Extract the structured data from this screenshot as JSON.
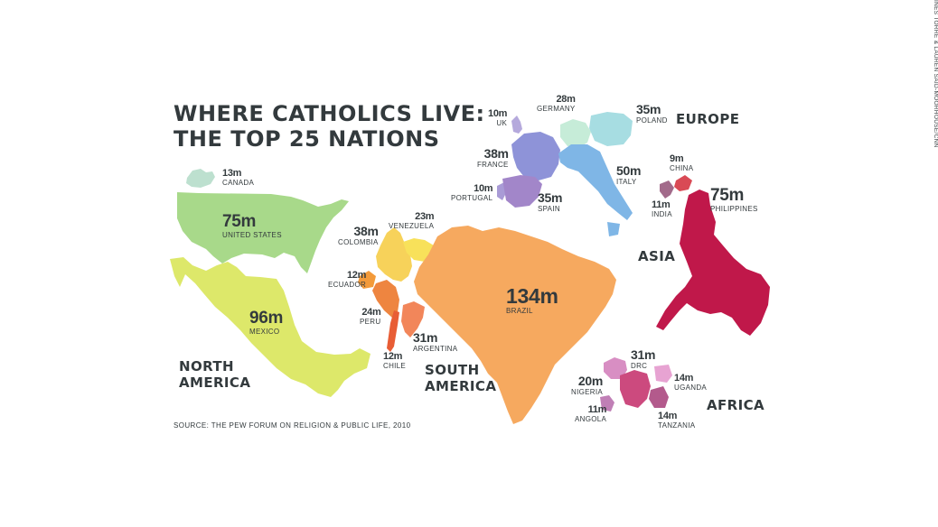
{
  "title": {
    "line1": "WHERE CATHOLICS LIVE:",
    "line2": "THE TOP 25 NATIONS"
  },
  "regions": {
    "north_america": [
      "NORTH",
      "AMERICA"
    ],
    "south_america": [
      "SOUTH",
      "AMERICA"
    ],
    "europe": "EUROPE",
    "asia": "ASIA",
    "africa": "AFRICA"
  },
  "countries": {
    "canada": {
      "value": "13m",
      "name": "CANADA",
      "color": "#bde0cf"
    },
    "united_states": {
      "value": "75m",
      "name": "UNITED STATES",
      "color": "#a8d98a"
    },
    "mexico": {
      "value": "96m",
      "name": "MEXICO",
      "color": "#dde86a"
    },
    "colombia": {
      "value": "38m",
      "name": "COLOMBIA",
      "color": "#f7d25a"
    },
    "venezuela": {
      "value": "23m",
      "name": "VENEZUELA",
      "color": "#f8e15a"
    },
    "ecuador": {
      "value": "12m",
      "name": "ECUADOR",
      "color": "#f39a3a"
    },
    "peru": {
      "value": "24m",
      "name": "PERU",
      "color": "#ee8540"
    },
    "chile": {
      "value": "12m",
      "name": "CHILE",
      "color": "#e85d35"
    },
    "argentina": {
      "value": "31m",
      "name": "ARGENTINA",
      "color": "#f2865a"
    },
    "brazil": {
      "value": "134m",
      "name": "BRAZIL",
      "color": "#f6a95f"
    },
    "uk": {
      "value": "10m",
      "name": "UK",
      "color": "#b5a9dc"
    },
    "germany": {
      "value": "28m",
      "name": "GERMANY",
      "color": "#c6ecd8"
    },
    "poland": {
      "value": "35m",
      "name": "POLAND",
      "color": "#a7dde2"
    },
    "france": {
      "value": "38m",
      "name": "FRANCE",
      "color": "#8e93d8"
    },
    "italy": {
      "value": "50m",
      "name": "ITALY",
      "color": "#7fb6e6"
    },
    "portugal": {
      "value": "10m",
      "name": "PORTUGAL",
      "color": "#a99bd6"
    },
    "spain": {
      "value": "35m",
      "name": "SPAIN",
      "color": "#a286c9"
    },
    "china": {
      "value": "9m",
      "name": "CHINA",
      "color": "#d94a55"
    },
    "india": {
      "value": "11m",
      "name": "INDIA",
      "color": "#a26a8a"
    },
    "philippines": {
      "value": "75m",
      "name": "PHILIPPINES",
      "color": "#c0184a"
    },
    "nigeria": {
      "value": "20m",
      "name": "NIGERIA",
      "color": "#d88ec3"
    },
    "drc": {
      "value": "31m",
      "name": "DRC",
      "color": "#cc4a7e"
    },
    "uganda": {
      "value": "14m",
      "name": "UGANDA",
      "color": "#e7a3d2"
    },
    "angola": {
      "value": "11m",
      "name": "ANGOLA",
      "color": "#c07fb6"
    },
    "tanzania": {
      "value": "14m",
      "name": "TANZANIA",
      "color": "#b35a8c"
    }
  },
  "source": "SOURCE: THE PEW FORUM ON RELIGION & PUBLIC LIFE, 2010",
  "credit": "INES TORRE & LAUREN SAID-MOORHOUSE/CNN"
}
